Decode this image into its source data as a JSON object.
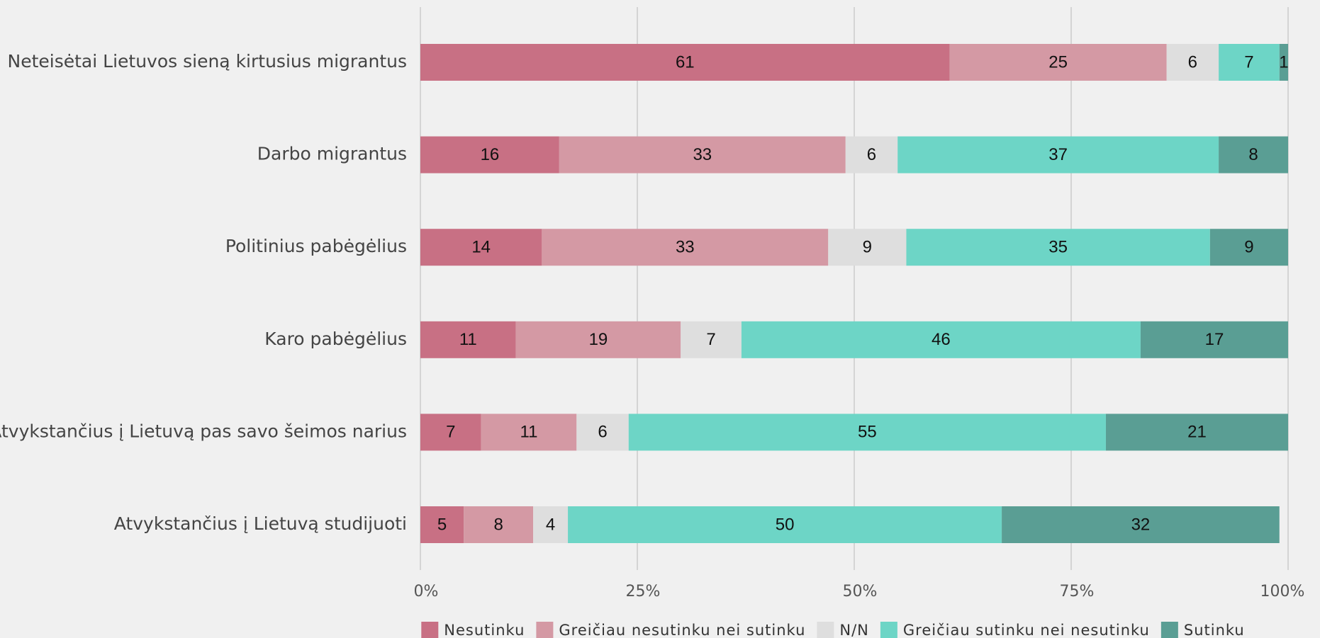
{
  "chart_data": {
    "type": "stacked-bar-horizontal",
    "categories": [
      "Neteisėtai Lietuvos sieną kirtusius migrantus",
      "Darbo migrantus",
      "Politinius pabėgėlius",
      "Karo pabėgėlius",
      "Atvykstančius į Lietuvą pas savo šeimos narius",
      "Atvykstančius į Lietuvą studijuoti"
    ],
    "series": [
      {
        "name": "Nesutinku",
        "color": "#c87084",
        "values": [
          61,
          16,
          14,
          11,
          7,
          5
        ]
      },
      {
        "name": "Greičiau nesutinku nei sutinku",
        "color": "#d499a4",
        "values": [
          25,
          33,
          33,
          19,
          11,
          8
        ]
      },
      {
        "name": "N/N",
        "color": "#dedede",
        "values": [
          6,
          6,
          9,
          7,
          6,
          4
        ]
      },
      {
        "name": "Greičiau sutinku nei nesutinku",
        "color": "#6dd5c6",
        "values": [
          7,
          37,
          35,
          46,
          55,
          50
        ]
      },
      {
        "name": "Sutinku",
        "color": "#5a9e94",
        "values": [
          1,
          8,
          9,
          17,
          21,
          32
        ]
      }
    ],
    "xlim": [
      0,
      100
    ],
    "xticks": [
      {
        "value": 0,
        "label": "0%"
      },
      {
        "value": 25,
        "label": "25%"
      },
      {
        "value": 50,
        "label": "50%"
      },
      {
        "value": 75,
        "label": "75%"
      },
      {
        "value": 100,
        "label": "100%"
      }
    ],
    "grid": true,
    "legend": "bottom"
  }
}
